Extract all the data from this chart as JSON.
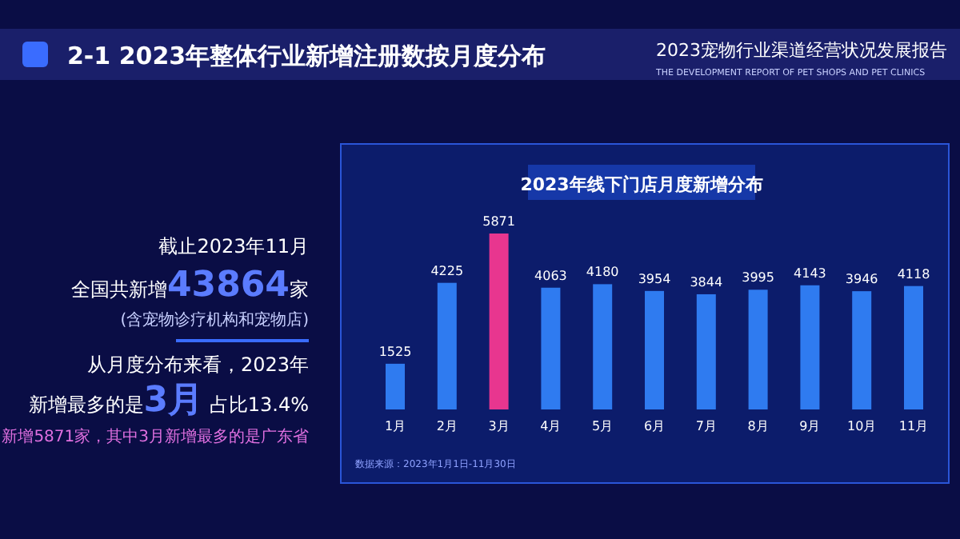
{
  "chart_data": {
    "type": "bar",
    "title": "2023年线下门店月度新增分布",
    "categories": [
      "1月",
      "2月",
      "3月",
      "4月",
      "5月",
      "6月",
      "7月",
      "8月",
      "9月",
      "10月",
      "11月"
    ],
    "values": [
      1525,
      4225,
      5871,
      4063,
      4180,
      3954,
      3844,
      3995,
      4143,
      3946,
      4118
    ],
    "colors": [
      "#2f7bf0",
      "#2f7bf0",
      "#e8368f",
      "#2f7bf0",
      "#2f7bf0",
      "#2f7bf0",
      "#2f7bf0",
      "#2f7bf0",
      "#2f7bf0",
      "#2f7bf0",
      "#2f7bf0"
    ],
    "data_labels": true,
    "annotations": [
      "2-1 2023年整体行业新增注册数按月度分布",
      "2023宠物行业渠道经营状况发展报告",
      "THE DEVELOPMENT REPORT OF PET SHOPS AND PET CLINICS",
      "截止2023年11月",
      "全国共新增43864家",
      "(含宠物诊疗机构和宠物店)",
      "从月度分布来看，2023年",
      "新增最多的是3月 占比13.4%",
      "新增5871家，其中3月新增最多的是广东省",
      "数据来源：2023年1月1日-11月30日"
    ]
  }
}
